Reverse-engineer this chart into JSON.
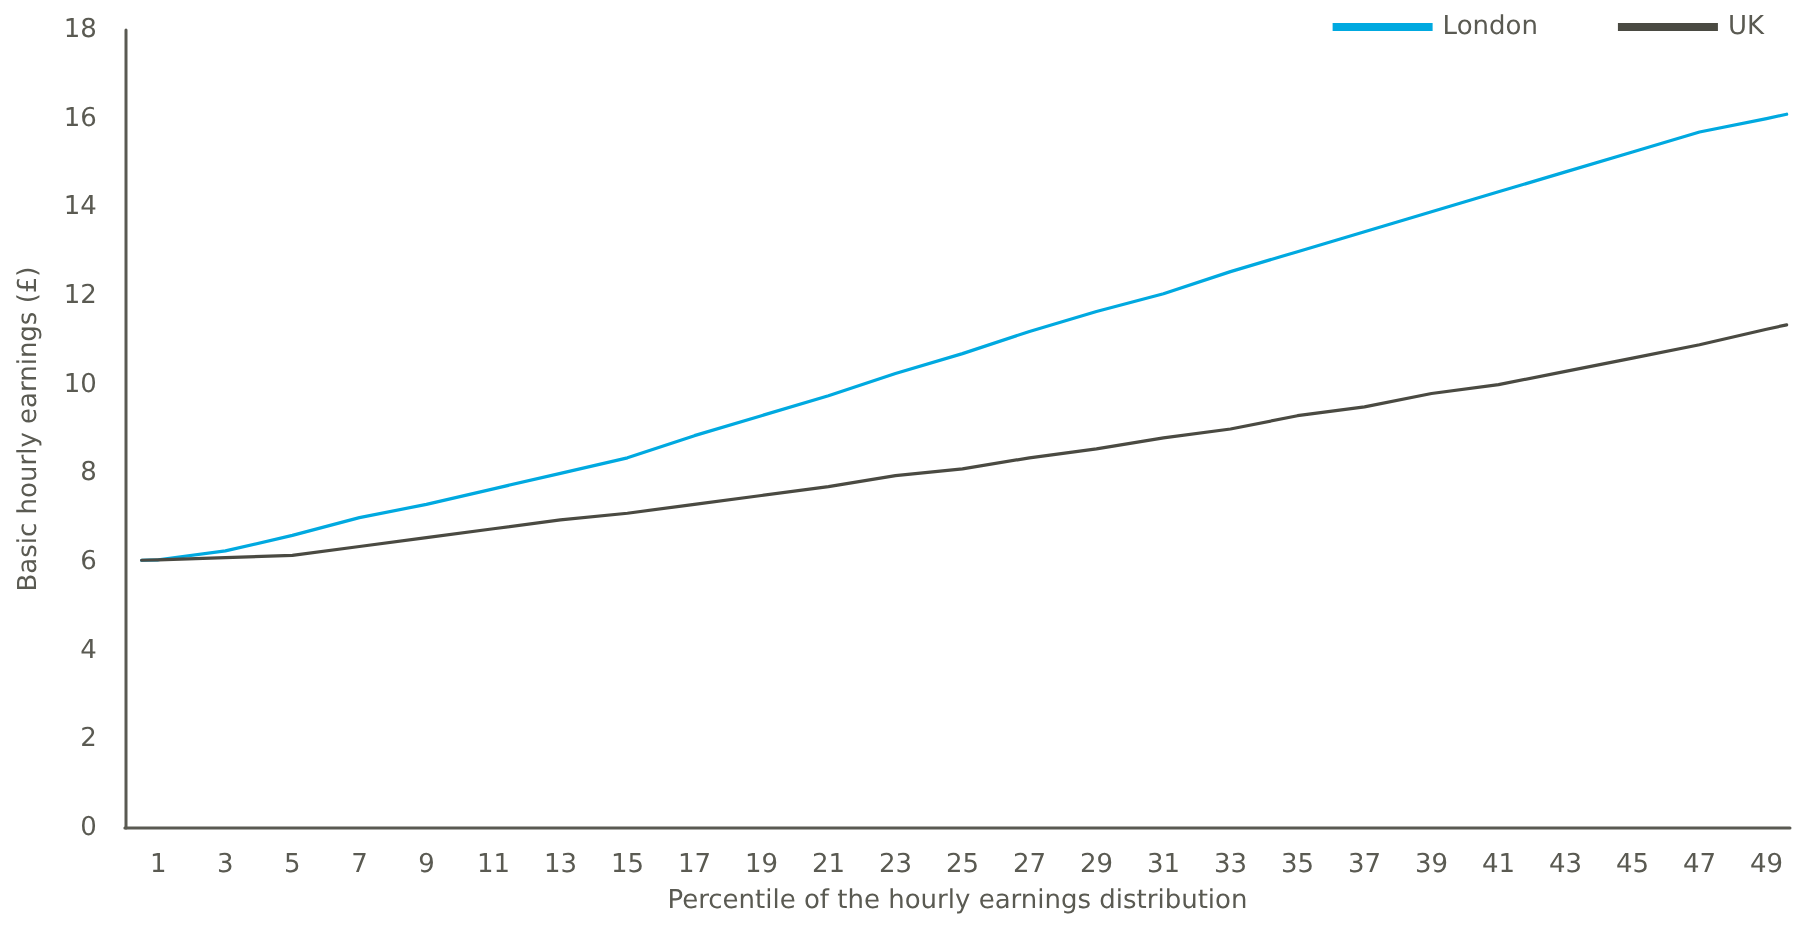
{
  "chart_data": {
    "type": "line",
    "xlabel": "Percentile of the hourly earnings distribution",
    "ylabel": "Basic hourly earnings (£)",
    "x": [
      0.5,
      1,
      3,
      5,
      7,
      9,
      11,
      13,
      15,
      17,
      19,
      21,
      23,
      25,
      27,
      29,
      31,
      33,
      35,
      37,
      39,
      41,
      43,
      45,
      47,
      49,
      49.6
    ],
    "series": [
      {
        "name": "London",
        "color": "#00a9e0",
        "values": [
          6.04,
          6.05,
          6.25,
          6.6,
          7.0,
          7.3,
          7.65,
          8.0,
          8.35,
          8.85,
          9.3,
          9.75,
          10.25,
          10.7,
          11.2,
          11.65,
          12.05,
          12.55,
          13.0,
          13.45,
          13.9,
          14.35,
          14.8,
          15.25,
          15.7,
          16.0,
          16.1
        ]
      },
      {
        "name": "UK",
        "color": "#4a4a42",
        "values": [
          6.04,
          6.05,
          6.1,
          6.15,
          6.35,
          6.55,
          6.75,
          6.95,
          7.1,
          7.3,
          7.5,
          7.7,
          7.95,
          8.1,
          8.35,
          8.55,
          8.8,
          9.0,
          9.3,
          9.5,
          9.8,
          10.0,
          10.3,
          10.6,
          10.9,
          11.25,
          11.35
        ]
      }
    ],
    "xlim": [
      0,
      49.7
    ],
    "xticks": [
      1,
      3,
      5,
      7,
      9,
      11,
      13,
      15,
      17,
      19,
      21,
      23,
      25,
      27,
      29,
      31,
      33,
      35,
      37,
      39,
      41,
      43,
      45,
      47,
      49
    ],
    "ylim": [
      0,
      18
    ],
    "yticks": [
      0,
      2,
      4,
      6,
      8,
      10,
      12,
      14,
      16,
      18
    ],
    "grid": false,
    "legend": "top right",
    "marker": "none",
    "line_style": "solid"
  }
}
